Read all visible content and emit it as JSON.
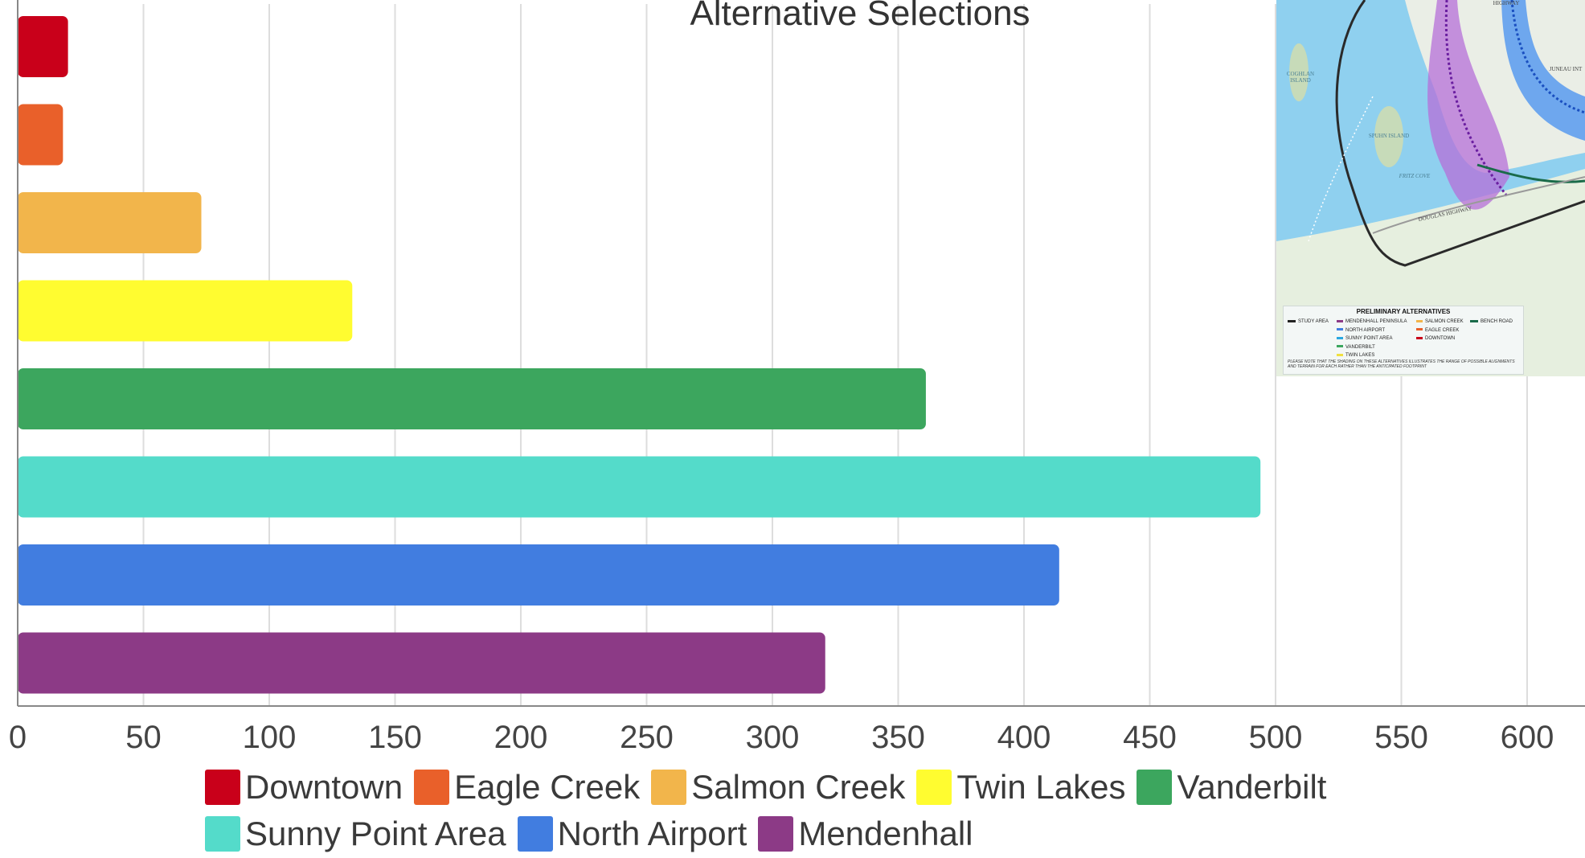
{
  "chart_data": {
    "type": "bar",
    "orientation": "horizontal",
    "title": "Alternative Selections",
    "categories": [
      "Downtown",
      "Eagle Creek",
      "Salmon Creek",
      "Twin Lakes",
      "Vanderbilt",
      "Sunny Point Area",
      "North Airport",
      "Mendenhall"
    ],
    "values": [
      20,
      18,
      73,
      133,
      361,
      494,
      414,
      321
    ],
    "colors": [
      "#c9001a",
      "#e9602a",
      "#f2b54b",
      "#fffc30",
      "#3ca65e",
      "#54dbca",
      "#417de0",
      "#8c3a86"
    ],
    "xlim": [
      0,
      620
    ],
    "xticks": [
      0,
      50,
      100,
      150,
      200,
      250,
      300,
      350,
      400,
      450,
      500,
      550,
      600
    ],
    "grid": true,
    "legend_position": "bottom"
  },
  "legend": {
    "row1": [
      "Downtown",
      "Eagle Creek",
      "Salmon Creek",
      "Twin Lakes",
      "Vanderbilt"
    ],
    "row2": [
      "Sunny Point Area",
      "North Airport",
      "Mendenhall"
    ]
  },
  "map_inset": {
    "legend_title": "PRELIMINARY ALTERNATIVES",
    "col1": [
      "STUDY AREA"
    ],
    "col2": [
      "MENDENHALL PENINSULA",
      "NORTH AIRPORT",
      "SUNNY POINT AREA",
      "VANDERBILT",
      "TWIN LAKES"
    ],
    "col3": [
      "SALMON CREEK",
      "EAGLE CREEK",
      "DOWNTOWN"
    ],
    "col4": [
      "BENCH ROAD"
    ],
    "note": "PLEASE NOTE THAT THE SHADING ON THESE ALTERNATIVES ILLUSTRATES THE RANGE OF POSSIBLE ALIGNMENTS AND TERRAIN FOR EACH RATHER THAN THE ANTICIPATED FOOTPRINT",
    "labels": {
      "coghlan": "COGHLAN ISLAND",
      "spuhn": "SPUHN ISLAND",
      "fritz": "FRITZ COVE",
      "douglas": "DOUGLAS HIGHWAY",
      "juneau": "JUNEAU INT",
      "highway": "HIGHWAY"
    },
    "colors": {
      "water": "#8fd0ef",
      "land": "#e6efdf",
      "mendenhall": "#b66fd8",
      "airport": "#4f95f0",
      "study_area": "#2a2a2a",
      "bench_road": "#1a6b4a"
    }
  }
}
